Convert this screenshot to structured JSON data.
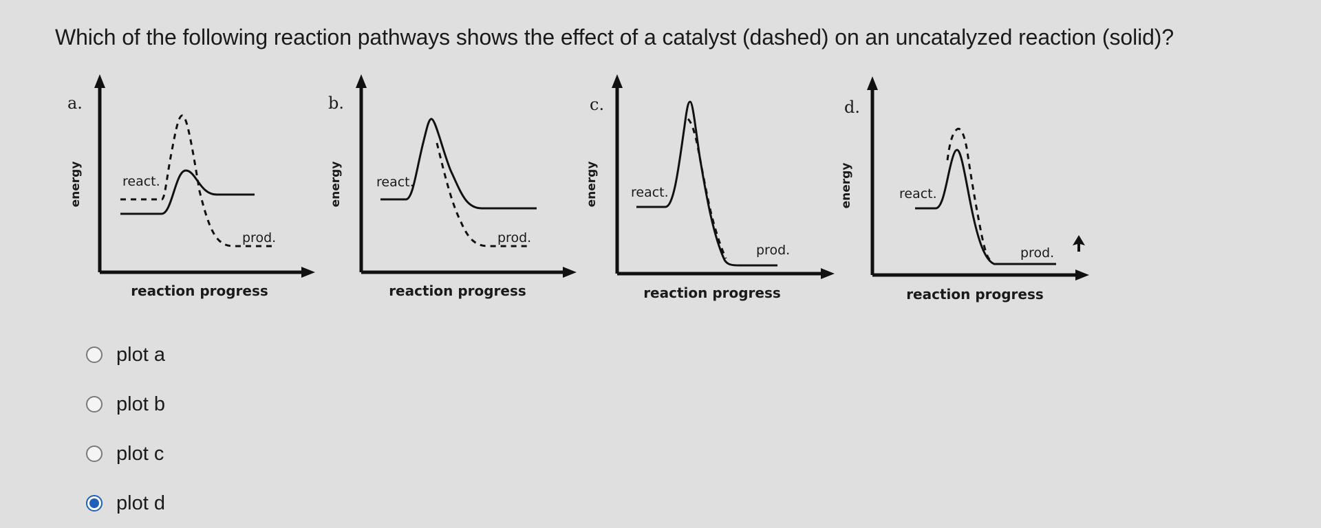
{
  "question": "Which of the following reaction pathways shows the effect of a catalyst (dashed) on an uncatalyzed reaction (solid)?",
  "axis": {
    "x_label": "reaction progress",
    "y_label": "energy"
  },
  "figures": [
    {
      "label": "a.",
      "react_label": "react.",
      "prod_label": "prod."
    },
    {
      "label": "b.",
      "react_label": "react.",
      "prod_label": "prod."
    },
    {
      "label": "c.",
      "react_label": "react.",
      "prod_label": "prod."
    },
    {
      "label": "d.",
      "react_label": "react.",
      "prod_label": "prod."
    }
  ],
  "options": [
    {
      "label": "plot a",
      "selected": false
    },
    {
      "label": "plot b",
      "selected": false
    },
    {
      "label": "plot c",
      "selected": false
    },
    {
      "label": "plot d",
      "selected": true
    }
  ],
  "colors": {
    "background": "#dfdfdf",
    "selected_radio": "#1f5fb8"
  },
  "icons": {
    "cursor": "mouse-pointer-icon"
  }
}
